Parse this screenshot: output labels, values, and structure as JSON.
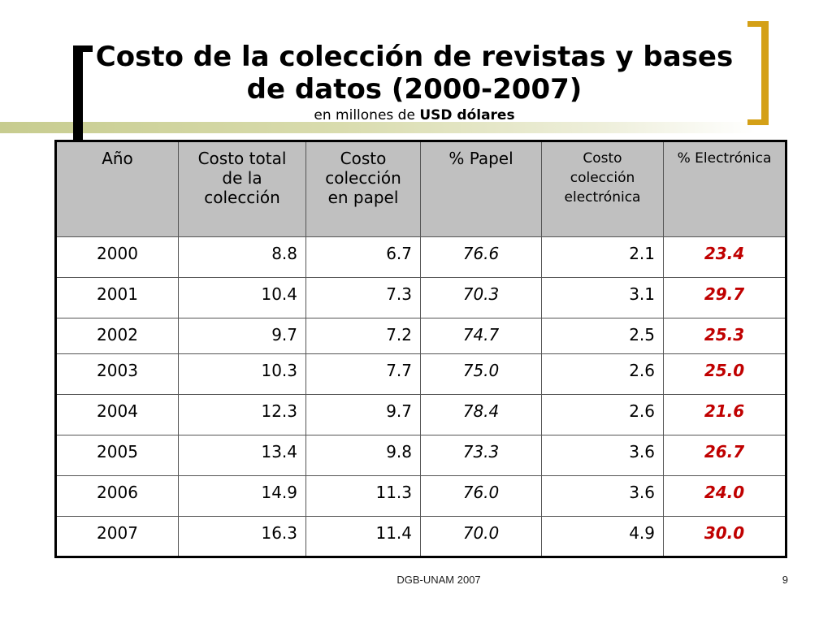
{
  "slide": {
    "title": "Costo de la colección de revistas y bases de datos (2000-2007)",
    "subtitle_prefix": "en millones de ",
    "subtitle_emphasis": "USD dólares"
  },
  "table": {
    "headers": [
      "Año",
      "Costo total de la colección",
      "Costo colección en papel",
      "% Papel",
      "Costo colección electrónica",
      "% Electrónica"
    ],
    "rows": [
      {
        "year": "2000",
        "total": "8.8",
        "paper": "6.7",
        "pct_paper": "76.6",
        "electronic": "2.1",
        "pct_electronic": "23.4"
      },
      {
        "year": "2001",
        "total": "10.4",
        "paper": "7.3",
        "pct_paper": "70.3",
        "electronic": "3.1",
        "pct_electronic": "29.7"
      },
      {
        "year": "2002",
        "total": "9.7",
        "paper": "7.2",
        "pct_paper": "74.7",
        "electronic": "2.5",
        "pct_electronic": "25.3"
      },
      {
        "year": "2003",
        "total": "10.3",
        "paper": "7.7",
        "pct_paper": "75.0",
        "electronic": "2.6",
        "pct_electronic": "25.0"
      },
      {
        "year": "2004",
        "total": "12.3",
        "paper": "9.7",
        "pct_paper": "78.4",
        "electronic": "2.6",
        "pct_electronic": "21.6"
      },
      {
        "year": "2005",
        "total": "13.4",
        "paper": "9.8",
        "pct_paper": "73.3",
        "electronic": "3.6",
        "pct_electronic": "26.7"
      },
      {
        "year": "2006",
        "total": "14.9",
        "paper": "11.3",
        "pct_paper": "76.0",
        "electronic": "3.6",
        "pct_electronic": "24.0"
      },
      {
        "year": "2007",
        "total": "16.3",
        "paper": "11.4",
        "pct_paper": "70.0",
        "electronic": "4.9",
        "pct_electronic": "30.0"
      }
    ]
  },
  "footer": {
    "source": "DGB-UNAM 2007",
    "page_number": "9"
  },
  "colors": {
    "accent_gold": "#d4a017",
    "header_gray": "#c0c0c0",
    "electronic_red": "#c00000",
    "band_olive": "#c7cc8f"
  }
}
